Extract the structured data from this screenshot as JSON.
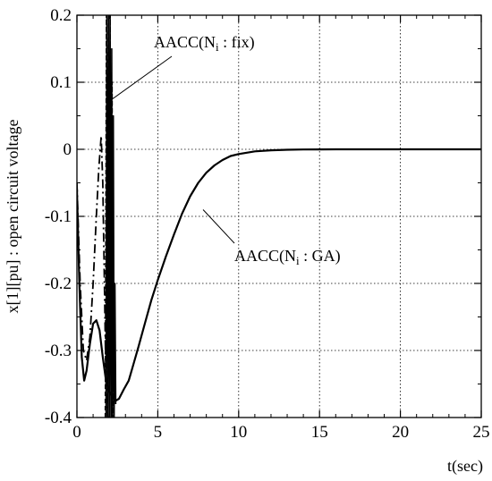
{
  "chart_data": {
    "type": "line",
    "title": "",
    "xlabel": "t(sec)",
    "ylabel": "x[1][pu] : open circuit voltage",
    "xlim": [
      0,
      25
    ],
    "ylim": [
      -0.4,
      0.2
    ],
    "grid": true,
    "x_ticks": [
      "0",
      "5",
      "10",
      "15",
      "20",
      "25"
    ],
    "y_ticks": [
      "0.2",
      "0.1",
      "0",
      "-0.1",
      "-0.2",
      "-0.3",
      "-0.4"
    ],
    "annotations": [
      {
        "text_main": "AACC(N",
        "text_sub": "i",
        "text_rest": " : fix)",
        "target_x": 1.9,
        "target_y": 0.07
      },
      {
        "text_main": "AACC(N",
        "text_sub": "i",
        "text_rest": " : GA)",
        "target_x": 7.8,
        "target_y": -0.09
      }
    ],
    "series": [
      {
        "style": "solid",
        "x": [
          0,
          0.15,
          0.3,
          0.45,
          0.6,
          0.8,
          1.0,
          1.2,
          1.4,
          1.6,
          1.8,
          2.0,
          2.2,
          2.4,
          2.6,
          2.9,
          3.2,
          3.5,
          3.8,
          4.2,
          4.6,
          5.0,
          5.5,
          6.0,
          6.5,
          7.0,
          7.5,
          8.0,
          8.5,
          9.0,
          9.5,
          10.0,
          11.0,
          12.0,
          13.0,
          14.0,
          15.0,
          16.0,
          17.0,
          18.0,
          20.0,
          22.0,
          25.0
        ],
        "y": [
          -0.06,
          -0.2,
          -0.31,
          -0.345,
          -0.33,
          -0.29,
          -0.26,
          -0.255,
          -0.27,
          -0.31,
          -0.345,
          -0.362,
          -0.37,
          -0.375,
          -0.372,
          -0.358,
          -0.345,
          -0.32,
          -0.295,
          -0.26,
          -0.225,
          -0.195,
          -0.16,
          -0.127,
          -0.096,
          -0.07,
          -0.05,
          -0.035,
          -0.024,
          -0.016,
          -0.01,
          -0.007,
          -0.003,
          -0.0015,
          -0.0007,
          -0.0003,
          -0.0001,
          0,
          0,
          0,
          0,
          0,
          0
        ]
      },
      {
        "style": "dashdot",
        "x": [
          0,
          0.2,
          0.4,
          0.6,
          0.8,
          1.0,
          1.2,
          1.35,
          1.5,
          1.6,
          1.7,
          1.8,
          1.9,
          2.0
        ],
        "y": [
          -0.05,
          -0.2,
          -0.3,
          -0.315,
          -0.28,
          -0.2,
          -0.1,
          -0.03,
          0.02,
          -0.05,
          -0.2,
          -0.35,
          -0.4,
          -0.4
        ]
      },
      {
        "style": "solid-osc",
        "x": [
          1.8,
          1.85,
          1.9,
          1.95,
          2.0,
          2.05,
          2.1,
          2.15,
          2.2,
          2.25,
          2.3,
          2.35,
          2.4
        ],
        "y": [
          -0.4,
          0.2,
          -0.4,
          0.2,
          -0.4,
          0.2,
          -0.4,
          0.15,
          -0.4,
          0.05,
          -0.4,
          -0.2,
          -0.38
        ]
      },
      {
        "style": "dashed-osc",
        "x": [
          1.75,
          1.82,
          1.88,
          1.94,
          2.0,
          2.06,
          2.12,
          2.18,
          2.24,
          2.3
        ],
        "y": [
          -0.4,
          0.2,
          -0.4,
          0.2,
          -0.4,
          0.2,
          -0.4,
          0.1,
          -0.4,
          -0.3
        ]
      }
    ]
  }
}
